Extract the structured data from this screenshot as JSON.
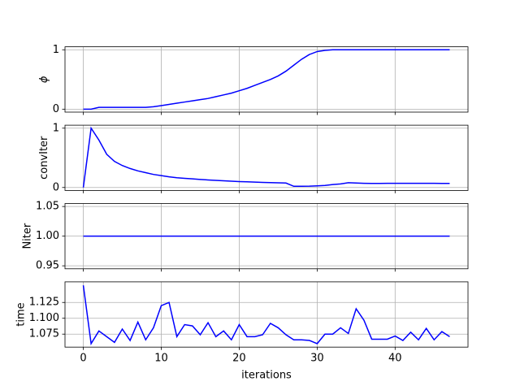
{
  "chart_data": [
    {
      "type": "line",
      "ylabel": "ϕ",
      "x": [
        0,
        1,
        2,
        3,
        4,
        5,
        6,
        7,
        8,
        9,
        10,
        11,
        12,
        13,
        14,
        15,
        16,
        17,
        18,
        19,
        20,
        21,
        22,
        23,
        24,
        25,
        26,
        27,
        28,
        29,
        30,
        31,
        32,
        33,
        34,
        35,
        36,
        37,
        38,
        39,
        40,
        41,
        42,
        43,
        44,
        45,
        46,
        47
      ],
      "series": [
        {
          "color": "blue",
          "values": [
            0,
            0,
            0.03,
            0.03,
            0.03,
            0.03,
            0.03,
            0.03,
            0.03,
            0.04,
            0.06,
            0.08,
            0.1,
            0.12,
            0.14,
            0.16,
            0.18,
            0.21,
            0.24,
            0.27,
            0.31,
            0.35,
            0.4,
            0.45,
            0.5,
            0.56,
            0.64,
            0.74,
            0.84,
            0.92,
            0.97,
            0.99,
            1,
            1,
            1,
            1,
            1,
            1,
            1,
            1,
            1,
            1,
            1,
            1,
            1,
            1,
            1,
            1
          ]
        }
      ],
      "xlim": [
        -2.35,
        49.35
      ],
      "ylim": [
        -0.05,
        1.05
      ],
      "yticks": [
        0,
        1
      ],
      "grid": true
    },
    {
      "type": "line",
      "ylabel": "convIter",
      "x": [
        0,
        1,
        2,
        3,
        4,
        5,
        6,
        7,
        8,
        9,
        10,
        11,
        12,
        13,
        14,
        15,
        16,
        17,
        18,
        19,
        20,
        21,
        22,
        23,
        24,
        25,
        26,
        27,
        28,
        29,
        30,
        31,
        32,
        33,
        34,
        35,
        36,
        37,
        38,
        39,
        40,
        41,
        42,
        43,
        44,
        45,
        46,
        47
      ],
      "series": [
        {
          "color": "blue",
          "values": [
            0,
            1,
            0.8,
            0.56,
            0.44,
            0.37,
            0.32,
            0.28,
            0.25,
            0.22,
            0.2,
            0.18,
            0.165,
            0.155,
            0.145,
            0.135,
            0.127,
            0.12,
            0.113,
            0.107,
            0.1,
            0.095,
            0.09,
            0.085,
            0.082,
            0.078,
            0.075,
            0.02,
            0.02,
            0.022,
            0.028,
            0.035,
            0.05,
            0.06,
            0.08,
            0.075,
            0.07,
            0.068,
            0.068,
            0.07,
            0.07,
            0.07,
            0.07,
            0.07,
            0.07,
            0.07,
            0.069,
            0.068
          ]
        }
      ],
      "xlim": [
        -2.35,
        49.35
      ],
      "ylim": [
        -0.05,
        1.05
      ],
      "yticks": [
        0,
        1
      ],
      "grid": true
    },
    {
      "type": "line",
      "ylabel": "Niter",
      "x": [
        0,
        1,
        2,
        3,
        4,
        5,
        6,
        7,
        8,
        9,
        10,
        11,
        12,
        13,
        14,
        15,
        16,
        17,
        18,
        19,
        20,
        21,
        22,
        23,
        24,
        25,
        26,
        27,
        28,
        29,
        30,
        31,
        32,
        33,
        34,
        35,
        36,
        37,
        38,
        39,
        40,
        41,
        42,
        43,
        44,
        45,
        46,
        47
      ],
      "series": [
        {
          "color": "blue",
          "values": [
            1,
            1,
            1,
            1,
            1,
            1,
            1,
            1,
            1,
            1,
            1,
            1,
            1,
            1,
            1,
            1,
            1,
            1,
            1,
            1,
            1,
            1,
            1,
            1,
            1,
            1,
            1,
            1,
            1,
            1,
            1,
            1,
            1,
            1,
            1,
            1,
            1,
            1,
            1,
            1,
            1,
            1,
            1,
            1,
            1,
            1,
            1,
            1
          ]
        }
      ],
      "xlim": [
        -2.35,
        49.35
      ],
      "ylim": [
        0.945,
        1.055
      ],
      "yticks": [
        0.95,
        {
          "value": 1,
          "label": "1.00"
        },
        1.05
      ],
      "grid": true
    },
    {
      "type": "line",
      "ylabel": "time",
      "xlabel": "iterations",
      "x": [
        0,
        1,
        2,
        3,
        4,
        5,
        6,
        7,
        8,
        9,
        10,
        11,
        12,
        13,
        14,
        15,
        16,
        17,
        18,
        19,
        20,
        21,
        22,
        23,
        24,
        25,
        26,
        27,
        28,
        29,
        30,
        31,
        32,
        33,
        34,
        35,
        36,
        37,
        38,
        39,
        40,
        41,
        42,
        43,
        44,
        45,
        46,
        47
      ],
      "series": [
        {
          "color": "blue",
          "values": [
            1.152,
            1.06,
            1.08,
            1.071,
            1.062,
            1.083,
            1.065,
            1.094,
            1.066,
            1.085,
            1.12,
            1.125,
            1.071,
            1.09,
            1.088,
            1.074,
            1.093,
            1.071,
            1.08,
            1.066,
            1.09,
            1.071,
            1.071,
            1.074,
            1.092,
            1.085,
            1.074,
            1.066,
            1.066,
            1.065,
            1.06,
            1.075,
            1.075,
            1.085,
            1.076,
            1.115,
            1.097,
            1.067,
            1.067,
            1.067,
            1.072,
            1.065,
            1.078,
            1.066,
            1.084,
            1.066,
            1.079,
            1.071
          ]
        }
      ],
      "xlim": [
        -2.35,
        49.35
      ],
      "ylim": [
        1.0545,
        1.1575
      ],
      "yticks": [
        1.075,
        {
          "value": 1.1,
          "label": "1.100"
        },
        1.125
      ],
      "xticks": [
        0,
        10,
        20,
        30,
        40
      ],
      "grid": true
    }
  ]
}
